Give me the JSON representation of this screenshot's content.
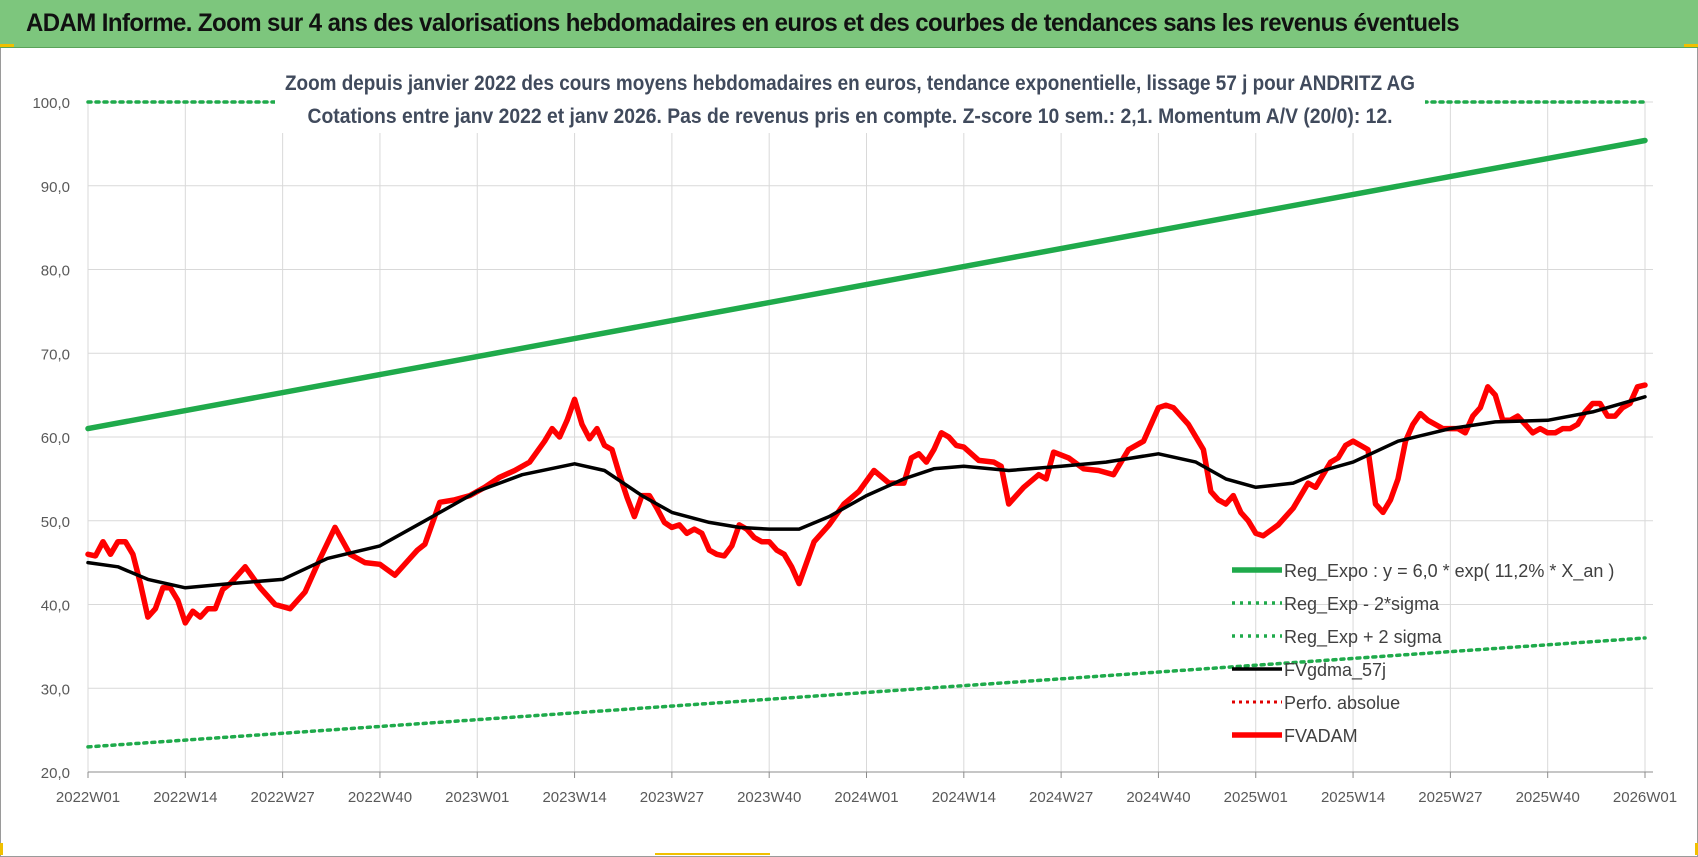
{
  "header": {
    "title": "ADAM Informe. Zoom sur 4 ans des valorisations hebdomadaires en euros et des courbes de tendances sans les revenus éventuels"
  },
  "chart_data": {
    "type": "line",
    "title": "Zoom depuis janvier 2022 des cours moyens hebdomadaires en euros, tendance exponentielle, lissage 57 j pour ANDRITZ AG",
    "subtitle": "Cotations entre janv 2022 et janv 2026. Pas de revenus pris en compte. Z-score 10 sem.: 2,1. Momentum A/V (20/0): 12.",
    "xlabel": "",
    "ylabel": "",
    "ylim": [
      20,
      100
    ],
    "y_ticks": [
      "20,0",
      "30,0",
      "40,0",
      "50,0",
      "60,0",
      "70,0",
      "80,0",
      "90,0",
      "100,0"
    ],
    "x_ticks": [
      "2022W01",
      "2022W14",
      "2022W27",
      "2022W40",
      "2023W01",
      "2023W14",
      "2023W27",
      "2023W40",
      "2024W01",
      "2024W14",
      "2024W27",
      "2024W40",
      "2025W01",
      "2025W14",
      "2025W27",
      "2025W40",
      "2026W01"
    ],
    "grid": true,
    "legend_position": "bottom-right",
    "colors": {
      "reg_expo": "#1faa4b",
      "sigma": "#1faa4b",
      "fvgdma": "#000000",
      "perfo": "#e00000",
      "fvadam": "#ff0000"
    },
    "series": [
      {
        "name": "Reg_Expo : y = 6,0 * exp( 11,2% *  X_an )",
        "style": "line-thick",
        "x": [
          "2022W01",
          "2026W01"
        ],
        "y": [
          61.0,
          95.4
        ]
      },
      {
        "name": "Reg_Exp - 2*sigma",
        "style": "dotted",
        "x": [
          "2022W01",
          "2026W01"
        ],
        "y": [
          23.0,
          36.0
        ]
      },
      {
        "name": "Reg_Exp + 2 sigma",
        "style": "dotted",
        "x": [
          "2022W01",
          "2026W01"
        ],
        "y": [
          100.0,
          100.0
        ]
      },
      {
        "name": "FVgdma_57j",
        "style": "line",
        "x": [
          "2022W01",
          "2022W05",
          "2022W09",
          "2022W14",
          "2022W20",
          "2022W27",
          "2022W33",
          "2022W40",
          "2022W46",
          "2023W01",
          "2023W07",
          "2023W14",
          "2023W18",
          "2023W23",
          "2023W27",
          "2023W32",
          "2023W36",
          "2023W40",
          "2023W44",
          "2023W48",
          "2024W01",
          "2024W06",
          "2024W10",
          "2024W14",
          "2024W20",
          "2024W27",
          "2024W33",
          "2024W40",
          "2024W45",
          "2024W49",
          "2025W01",
          "2025W06",
          "2025W10",
          "2025W14",
          "2025W20",
          "2025W27",
          "2025W33",
          "2025W40",
          "2025W46",
          "2026W01"
        ],
        "y": [
          45.0,
          44.5,
          43.0,
          42.0,
          42.5,
          43.0,
          45.5,
          47.0,
          50.0,
          53.5,
          55.5,
          56.8,
          56.0,
          53.0,
          51.0,
          49.8,
          49.2,
          49.0,
          49.0,
          50.5,
          53.0,
          55.0,
          56.2,
          56.5,
          56.0,
          56.5,
          57.0,
          58.0,
          57.0,
          55.0,
          54.0,
          54.5,
          56.0,
          57.0,
          59.5,
          61.0,
          61.8,
          62.0,
          63.0,
          64.8
        ]
      },
      {
        "name": "Perfo. absolue",
        "style": "dotted",
        "x": [],
        "y": []
      },
      {
        "name": "FVADAM",
        "style": "line-thick",
        "x": [
          "2022W01",
          "2022W02",
          "2022W03",
          "2022W04",
          "2022W05",
          "2022W06",
          "2022W07",
          "2022W08",
          "2022W09",
          "2022W10",
          "2022W11",
          "2022W12",
          "2022W13",
          "2022W14",
          "2022W15",
          "2022W16",
          "2022W17",
          "2022W18",
          "2022W19",
          "2022W20",
          "2022W21",
          "2022W22",
          "2022W24",
          "2022W26",
          "2022W28",
          "2022W30",
          "2022W32",
          "2022W34",
          "2022W36",
          "2022W38",
          "2022W40",
          "2022W42",
          "2022W44",
          "2022W45",
          "2022W46",
          "2022W48",
          "2022W50",
          "2022W52",
          "2023W02",
          "2023W04",
          "2023W06",
          "2023W08",
          "2023W10",
          "2023W11",
          "2023W12",
          "2023W13",
          "2023W14",
          "2023W15",
          "2023W16",
          "2023W17",
          "2023W18",
          "2023W19",
          "2023W20",
          "2023W21",
          "2023W22",
          "2023W23",
          "2023W24",
          "2023W25",
          "2023W26",
          "2023W27",
          "2023W28",
          "2023W29",
          "2023W30",
          "2023W31",
          "2023W32",
          "2023W33",
          "2023W34",
          "2023W35",
          "2023W36",
          "2023W37",
          "2023W38",
          "2023W39",
          "2023W40",
          "2023W41",
          "2023W42",
          "2023W43",
          "2023W44",
          "2023W46",
          "2023W48",
          "2023W50",
          "2023W52",
          "2024W02",
          "2024W04",
          "2024W06",
          "2024W07",
          "2024W08",
          "2024W09",
          "2024W10",
          "2024W11",
          "2024W12",
          "2024W13",
          "2024W14",
          "2024W16",
          "2024W18",
          "2024W19",
          "2024W20",
          "2024W22",
          "2024W24",
          "2024W25",
          "2024W26",
          "2024W28",
          "2024W30",
          "2024W32",
          "2024W34",
          "2024W36",
          "2024W38",
          "2024W39",
          "2024W40",
          "2024W41",
          "2024W42",
          "2024W43",
          "2024W44",
          "2024W45",
          "2024W46",
          "2024W47",
          "2024W48",
          "2024W49",
          "2024W50",
          "2024W51",
          "2024W52",
          "2025W01",
          "2025W02",
          "2025W04",
          "2025W06",
          "2025W08",
          "2025W09",
          "2025W10",
          "2025W11",
          "2025W12",
          "2025W13",
          "2025W14",
          "2025W15",
          "2025W16",
          "2025W17",
          "2025W18",
          "2025W19",
          "2025W20",
          "2025W21",
          "2025W22",
          "2025W23",
          "2025W24",
          "2025W26",
          "2025W28",
          "2025W29",
          "2025W30",
          "2025W31",
          "2025W32",
          "2025W33",
          "2025W34",
          "2025W35",
          "2025W36",
          "2025W37",
          "2025W38",
          "2025W39",
          "2025W40",
          "2025W41",
          "2025W42",
          "2025W43",
          "2025W44",
          "2025W45",
          "2025W46",
          "2025W47",
          "2025W48",
          "2025W49",
          "2025W50",
          "2025W51",
          "2025W52",
          "2026W01"
        ],
        "y": [
          46.0,
          45.8,
          47.5,
          46.0,
          47.5,
          47.5,
          46.0,
          42.5,
          38.5,
          39.5,
          42.0,
          42.0,
          40.5,
          37.8,
          39.2,
          38.5,
          39.5,
          39.5,
          41.8,
          42.5,
          43.5,
          44.5,
          42.0,
          40.0,
          39.5,
          41.5,
          45.5,
          49.2,
          46.0,
          45.0,
          44.8,
          43.5,
          45.5,
          46.5,
          47.2,
          52.2,
          52.5,
          53.0,
          54.0,
          55.2,
          56.0,
          57.0,
          59.5,
          61.0,
          60.0,
          62.0,
          64.5,
          61.5,
          59.8,
          61.0,
          59.0,
          58.5,
          55.5,
          52.8,
          50.5,
          53.0,
          53.0,
          51.5,
          49.8,
          49.2,
          49.5,
          48.5,
          49.0,
          48.5,
          46.5,
          46.0,
          45.8,
          47.0,
          49.5,
          49.0,
          48.0,
          47.5,
          47.5,
          46.5,
          46.0,
          44.5,
          42.5,
          47.5,
          49.5,
          52.0,
          53.5,
          56.0,
          54.5,
          54.5,
          57.5,
          58.0,
          57.0,
          58.5,
          60.5,
          60.0,
          59.0,
          58.8,
          57.2,
          57.0,
          56.5,
          52.0,
          54.0,
          55.5,
          55.0,
          58.2,
          57.5,
          56.2,
          56.0,
          55.5,
          58.5,
          59.5,
          61.5,
          63.5,
          63.8,
          63.5,
          62.5,
          61.5,
          60.0,
          58.5,
          53.5,
          52.5,
          52.0,
          53.0,
          51.0,
          50.0,
          48.5,
          48.2,
          49.5,
          51.5,
          54.5,
          54.0,
          55.5,
          57.0,
          57.5,
          59.0,
          59.5,
          59.0,
          58.5,
          52.0,
          51.0,
          52.5,
          55.0,
          59.5,
          61.5,
          62.8,
          62.0,
          61.0,
          61.0,
          60.5,
          62.5,
          63.5,
          66.0,
          65.0,
          62.0,
          62.0,
          62.5,
          61.5,
          60.5,
          61.0,
          60.5,
          60.5,
          61.0,
          61.0,
          61.5,
          63.0,
          64.0,
          64.0,
          62.5,
          62.5,
          63.5,
          64.0,
          66.0,
          66.2
        ]
      }
    ]
  }
}
